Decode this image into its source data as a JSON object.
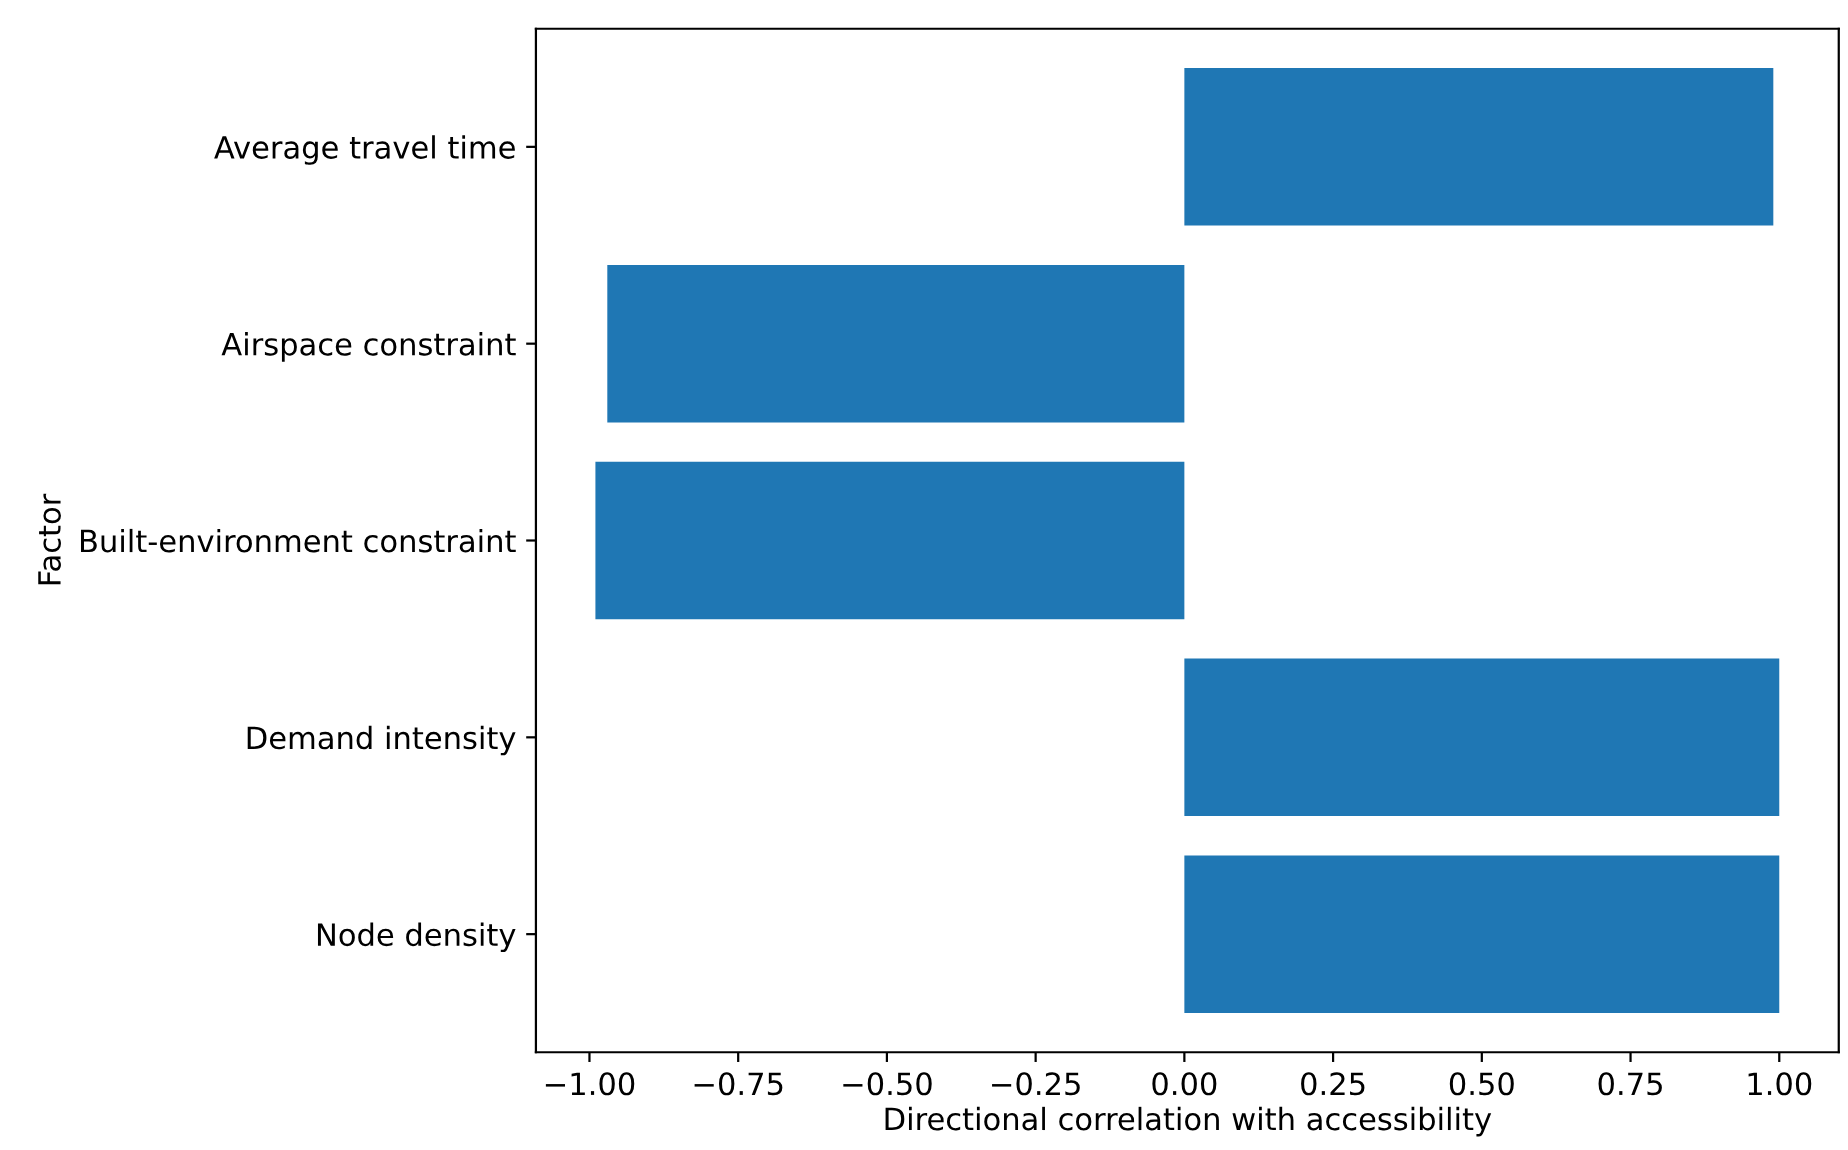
{
  "chart_data": {
    "type": "bar",
    "orientation": "horizontal",
    "xlabel": "Directional correlation with accessibility",
    "ylabel": "Factor",
    "categories": [
      "Average travel time",
      "Airspace constraint",
      "Built-environment constraint",
      "Demand intensity",
      "Node density"
    ],
    "values": [
      0.99,
      -0.97,
      -0.99,
      1.0,
      1.0
    ],
    "color": "#1f77b4",
    "xlim": [
      -1.09,
      1.1
    ],
    "xticks": [
      {
        "value": -1.0,
        "label": "−1.00"
      },
      {
        "value": -0.75,
        "label": "−0.75"
      },
      {
        "value": -0.5,
        "label": "−0.50"
      },
      {
        "value": -0.25,
        "label": "−0.25"
      },
      {
        "value": 0,
        "label": "0.00"
      },
      {
        "value": 0.25,
        "label": "0.25"
      },
      {
        "value": 0.5,
        "label": "0.50"
      },
      {
        "value": 0.75,
        "label": "0.75"
      },
      {
        "value": 1.0,
        "label": "1.00"
      }
    ],
    "grid": false,
    "legend": false
  }
}
